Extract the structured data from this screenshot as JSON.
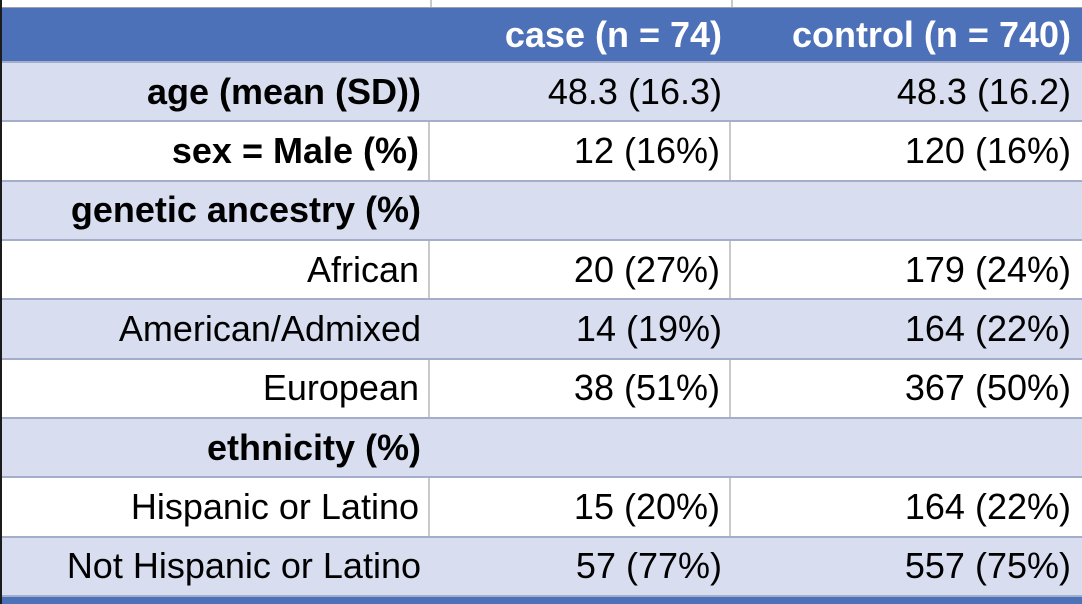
{
  "table": {
    "columns": [
      {
        "label": ""
      },
      {
        "label": "case (n = 74)"
      },
      {
        "label": "control (n = 740)"
      }
    ],
    "rows": [
      {
        "label": "age (mean (SD))",
        "bold": true,
        "case": "48.3 (16.3)",
        "control": "48.3 (16.2)"
      },
      {
        "label": "sex = Male (%)",
        "bold": true,
        "case": "12 (16%)",
        "control": "120 (16%)"
      },
      {
        "label": "genetic ancestry (%)",
        "bold": true,
        "case": "",
        "control": ""
      },
      {
        "label": "African",
        "bold": false,
        "case": "20 (27%)",
        "control": "179 (24%)"
      },
      {
        "label": "American/Admixed",
        "bold": false,
        "case": "14 (19%)",
        "control": "164 (22%)"
      },
      {
        "label": "European",
        "bold": false,
        "case": "38 (51%)",
        "control": "367 (50%)"
      },
      {
        "label": "ethnicity (%)",
        "bold": true,
        "case": "",
        "control": ""
      },
      {
        "label": "Hispanic or Latino",
        "bold": false,
        "case": "15 (20%)",
        "control": "164 (22%)"
      },
      {
        "label": "Not Hispanic or Latino",
        "bold": false,
        "case": "57 (77%)",
        "control": "557 (75%)"
      }
    ],
    "colors": {
      "header_bg": "#4d71b9",
      "header_text": "#ffffff",
      "band_bg": "#d8deef",
      "row_border": "#a4aecb",
      "gridline": "#c9c9c9",
      "edge_border": "#1c1c1c"
    }
  }
}
